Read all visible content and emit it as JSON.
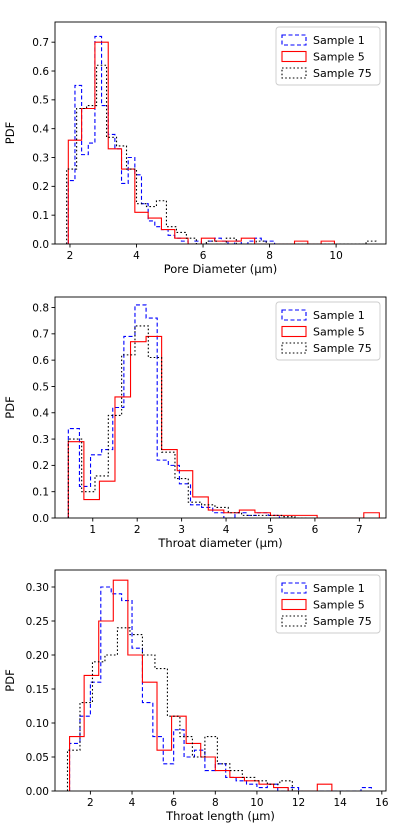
{
  "chart_data": [
    {
      "type": "histogram-step",
      "xlabel": "Pore Diameter (μm)",
      "ylabel": "PDF",
      "xlim": [
        1.55,
        11.5
      ],
      "ylim": [
        0,
        0.77
      ],
      "xticks": [
        2,
        4,
        6,
        8,
        10
      ],
      "yticks": [
        0.0,
        0.1,
        0.2,
        0.3,
        0.4,
        0.5,
        0.6,
        0.7
      ],
      "ytick_labels": [
        "0.0",
        "0.1",
        "0.2",
        "0.3",
        "0.4",
        "0.5",
        "0.6",
        "0.7"
      ],
      "legend_position": "top-right",
      "series": [
        {
          "name": "Sample 1",
          "color": "#0000ff",
          "dash": "dashed",
          "edges": [
            1.95,
            2.15,
            2.35,
            2.55,
            2.75,
            2.95,
            3.15,
            3.35,
            3.55,
            3.75,
            3.95,
            4.15,
            4.35,
            4.55,
            4.75,
            4.95,
            5.15,
            5.35,
            5.55,
            5.75,
            5.95,
            6.15,
            6.35,
            6.55,
            6.75,
            6.95,
            7.15,
            7.35,
            7.55,
            7.75,
            7.95,
            8.15
          ],
          "values": [
            0.22,
            0.55,
            0.31,
            0.35,
            0.72,
            0.48,
            0.38,
            0.33,
            0.21,
            0.3,
            0.24,
            0.14,
            0.08,
            0.06,
            0.05,
            0.03,
            0.02,
            0.01,
            0.0,
            0.01,
            0.0,
            0.01,
            0.02,
            0.01,
            0.0,
            0.01,
            0.0,
            0.01,
            0.02,
            0.01,
            0.01
          ]
        },
        {
          "name": "Sample 5",
          "color": "#ff0000",
          "dash": "solid",
          "edges": [
            1.95,
            2.35,
            2.75,
            3.15,
            3.55,
            3.95,
            4.35,
            4.75,
            5.15,
            5.55,
            5.95,
            6.35,
            6.75,
            7.15,
            7.55,
            7.95,
            8.35,
            8.75,
            9.15,
            9.55,
            9.95
          ],
          "values": [
            0.36,
            0.47,
            0.7,
            0.33,
            0.26,
            0.11,
            0.09,
            0.05,
            0.02,
            0.0,
            0.02,
            0.01,
            0.01,
            0.02,
            0.0,
            0.0,
            0.0,
            0.01,
            0.0,
            0.01
          ]
        },
        {
          "name": "Sample 75",
          "color": "#000000",
          "dash": "dotted",
          "edges": [
            1.9,
            2.2,
            2.5,
            2.8,
            3.1,
            3.4,
            3.7,
            4.0,
            4.3,
            4.6,
            4.9,
            5.2,
            5.5,
            5.8,
            6.1,
            6.4,
            6.7,
            7.0,
            7.3,
            7.6,
            7.9,
            8.2,
            8.5,
            8.8,
            9.1,
            9.4,
            9.7,
            10.0,
            10.3,
            10.6,
            10.9,
            11.2
          ],
          "values": [
            0.26,
            0.47,
            0.48,
            0.62,
            0.37,
            0.34,
            0.26,
            0.14,
            0.13,
            0.15,
            0.06,
            0.04,
            0.02,
            0.0,
            0.01,
            0.0,
            0.02,
            0.0,
            0.0,
            0.01,
            0.0,
            0.0,
            0.0,
            0.0,
            0.0,
            0.0,
            0.0,
            0.0,
            0.0,
            0.0,
            0.01
          ]
        }
      ]
    },
    {
      "type": "histogram-step",
      "xlabel": "Throat diameter (μm)",
      "ylabel": "PDF",
      "xlim": [
        0.15,
        7.6
      ],
      "ylim": [
        0,
        0.84
      ],
      "xticks": [
        1,
        2,
        3,
        4,
        5,
        6,
        7
      ],
      "yticks": [
        0.0,
        0.1,
        0.2,
        0.3,
        0.4,
        0.5,
        0.6,
        0.7,
        0.8
      ],
      "ytick_labels": [
        "0.0",
        "0.1",
        "0.2",
        "0.3",
        "0.4",
        "0.5",
        "0.6",
        "0.7",
        "0.8"
      ],
      "legend_position": "top-right",
      "series": [
        {
          "name": "Sample 1",
          "color": "#0000ff",
          "dash": "dashed",
          "edges": [
            0.45,
            0.7,
            0.95,
            1.2,
            1.45,
            1.7,
            1.95,
            2.2,
            2.45,
            2.7,
            2.95,
            3.2,
            3.45,
            3.7,
            3.95,
            4.2,
            4.45,
            4.7,
            4.95,
            5.2,
            5.45
          ],
          "values": [
            0.34,
            0.12,
            0.24,
            0.26,
            0.42,
            0.69,
            0.81,
            0.76,
            0.22,
            0.2,
            0.13,
            0.05,
            0.04,
            0.02,
            0.0,
            0.02,
            0.01,
            0.02,
            0.01,
            0.0
          ]
        },
        {
          "name": "Sample 5",
          "color": "#ff0000",
          "dash": "solid",
          "edges": [
            0.45,
            0.8,
            1.15,
            1.5,
            1.85,
            2.2,
            2.55,
            2.9,
            3.25,
            3.6,
            3.95,
            4.3,
            4.65,
            5.0,
            5.35,
            5.7,
            6.05,
            6.4,
            6.75,
            7.1,
            7.45
          ],
          "values": [
            0.29,
            0.07,
            0.14,
            0.46,
            0.67,
            0.69,
            0.26,
            0.18,
            0.08,
            0.03,
            0.02,
            0.03,
            0.02,
            0.01,
            0.01,
            0.01,
            0.0,
            0.0,
            0.0,
            0.02
          ]
        },
        {
          "name": "Sample 75",
          "color": "#000000",
          "dash": "dotted",
          "edges": [
            0.45,
            0.75,
            1.05,
            1.35,
            1.65,
            1.95,
            2.25,
            2.55,
            2.85,
            3.15,
            3.45,
            3.75,
            4.05,
            4.35,
            4.65,
            4.95,
            5.25,
            5.55,
            5.85
          ],
          "values": [
            0.3,
            0.1,
            0.16,
            0.39,
            0.62,
            0.73,
            0.61,
            0.25,
            0.15,
            0.06,
            0.05,
            0.04,
            0.02,
            0.01,
            0.01,
            0.01,
            0.005,
            0.0
          ]
        }
      ]
    },
    {
      "type": "histogram-step",
      "xlabel": "Throat length (μm)",
      "ylabel": "PDF",
      "xlim": [
        0.3,
        16.2
      ],
      "ylim": [
        0,
        0.325
      ],
      "xticks": [
        2,
        4,
        6,
        8,
        10,
        12,
        14,
        16
      ],
      "yticks": [
        0.0,
        0.05,
        0.1,
        0.15,
        0.2,
        0.25,
        0.3
      ],
      "ytick_labels": [
        "0.00",
        "0.05",
        "0.10",
        "0.15",
        "0.20",
        "0.25",
        "0.30"
      ],
      "legend_position": "top-right",
      "series": [
        {
          "name": "Sample 1",
          "color": "#0000ff",
          "dash": "dashed",
          "edges": [
            1.0,
            1.5,
            2.0,
            2.5,
            3.0,
            3.5,
            4.0,
            4.5,
            5.0,
            5.5,
            6.0,
            6.5,
            7.0,
            7.5,
            8.0,
            8.5,
            9.0,
            9.5,
            10.0,
            10.5,
            11.0,
            11.5,
            12.0,
            12.5,
            13.0,
            13.5,
            14.0,
            14.5,
            15.0,
            15.5
          ],
          "values": [
            0.07,
            0.11,
            0.16,
            0.3,
            0.29,
            0.28,
            0.21,
            0.13,
            0.08,
            0.04,
            0.09,
            0.05,
            0.06,
            0.03,
            0.04,
            0.02,
            0.015,
            0.01,
            0.005,
            0.01,
            0.0,
            0.005,
            0.0,
            0.0,
            0.0,
            0.0,
            0.0,
            0.0,
            0.005
          ]
        },
        {
          "name": "Sample 5",
          "color": "#ff0000",
          "dash": "solid",
          "edges": [
            1.0,
            1.7,
            2.4,
            3.1,
            3.8,
            4.5,
            5.2,
            5.9,
            6.6,
            7.3,
            8.0,
            8.7,
            9.4,
            10.1,
            10.8,
            11.5,
            12.2,
            12.9,
            13.6
          ],
          "values": [
            0.08,
            0.17,
            0.25,
            0.31,
            0.2,
            0.16,
            0.06,
            0.11,
            0.07,
            0.05,
            0.03,
            0.02,
            0.015,
            0.01,
            0.005,
            0.0,
            0.0,
            0.01
          ]
        },
        {
          "name": "Sample 75",
          "color": "#000000",
          "dash": "dotted",
          "edges": [
            0.9,
            1.5,
            2.1,
            2.7,
            3.3,
            3.9,
            4.5,
            5.1,
            5.7,
            6.3,
            6.9,
            7.5,
            8.1,
            8.7,
            9.3,
            9.9,
            10.5,
            11.1,
            11.7,
            12.3
          ],
          "values": [
            0.06,
            0.13,
            0.19,
            0.2,
            0.24,
            0.23,
            0.2,
            0.18,
            0.11,
            0.08,
            0.05,
            0.08,
            0.04,
            0.03,
            0.02,
            0.015,
            0.01,
            0.015,
            0.0
          ]
        }
      ]
    }
  ]
}
